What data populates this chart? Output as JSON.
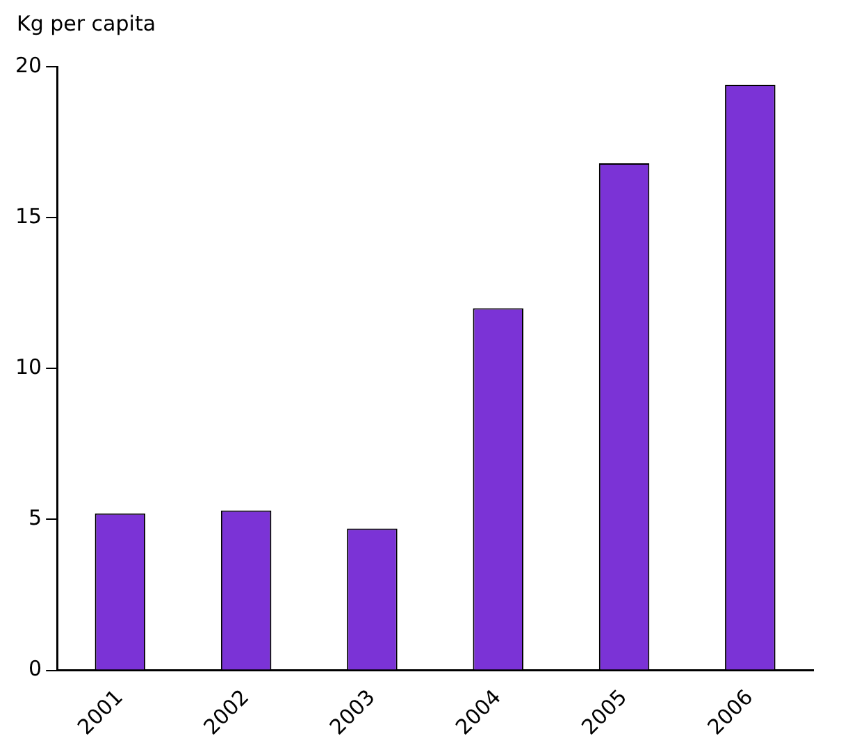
{
  "chart_data": {
    "type": "bar",
    "ylabel": "Kg per capita",
    "categories": [
      "2001",
      "2002",
      "2003",
      "2004",
      "2005",
      "2006"
    ],
    "values": [
      5.2,
      5.3,
      4.7,
      12.0,
      16.8,
      19.4
    ],
    "color": "#7b33d6",
    "ylim": [
      0,
      20
    ],
    "yticks": [
      0,
      5,
      10,
      15,
      20
    ],
    "grid": false,
    "legend": false
  }
}
